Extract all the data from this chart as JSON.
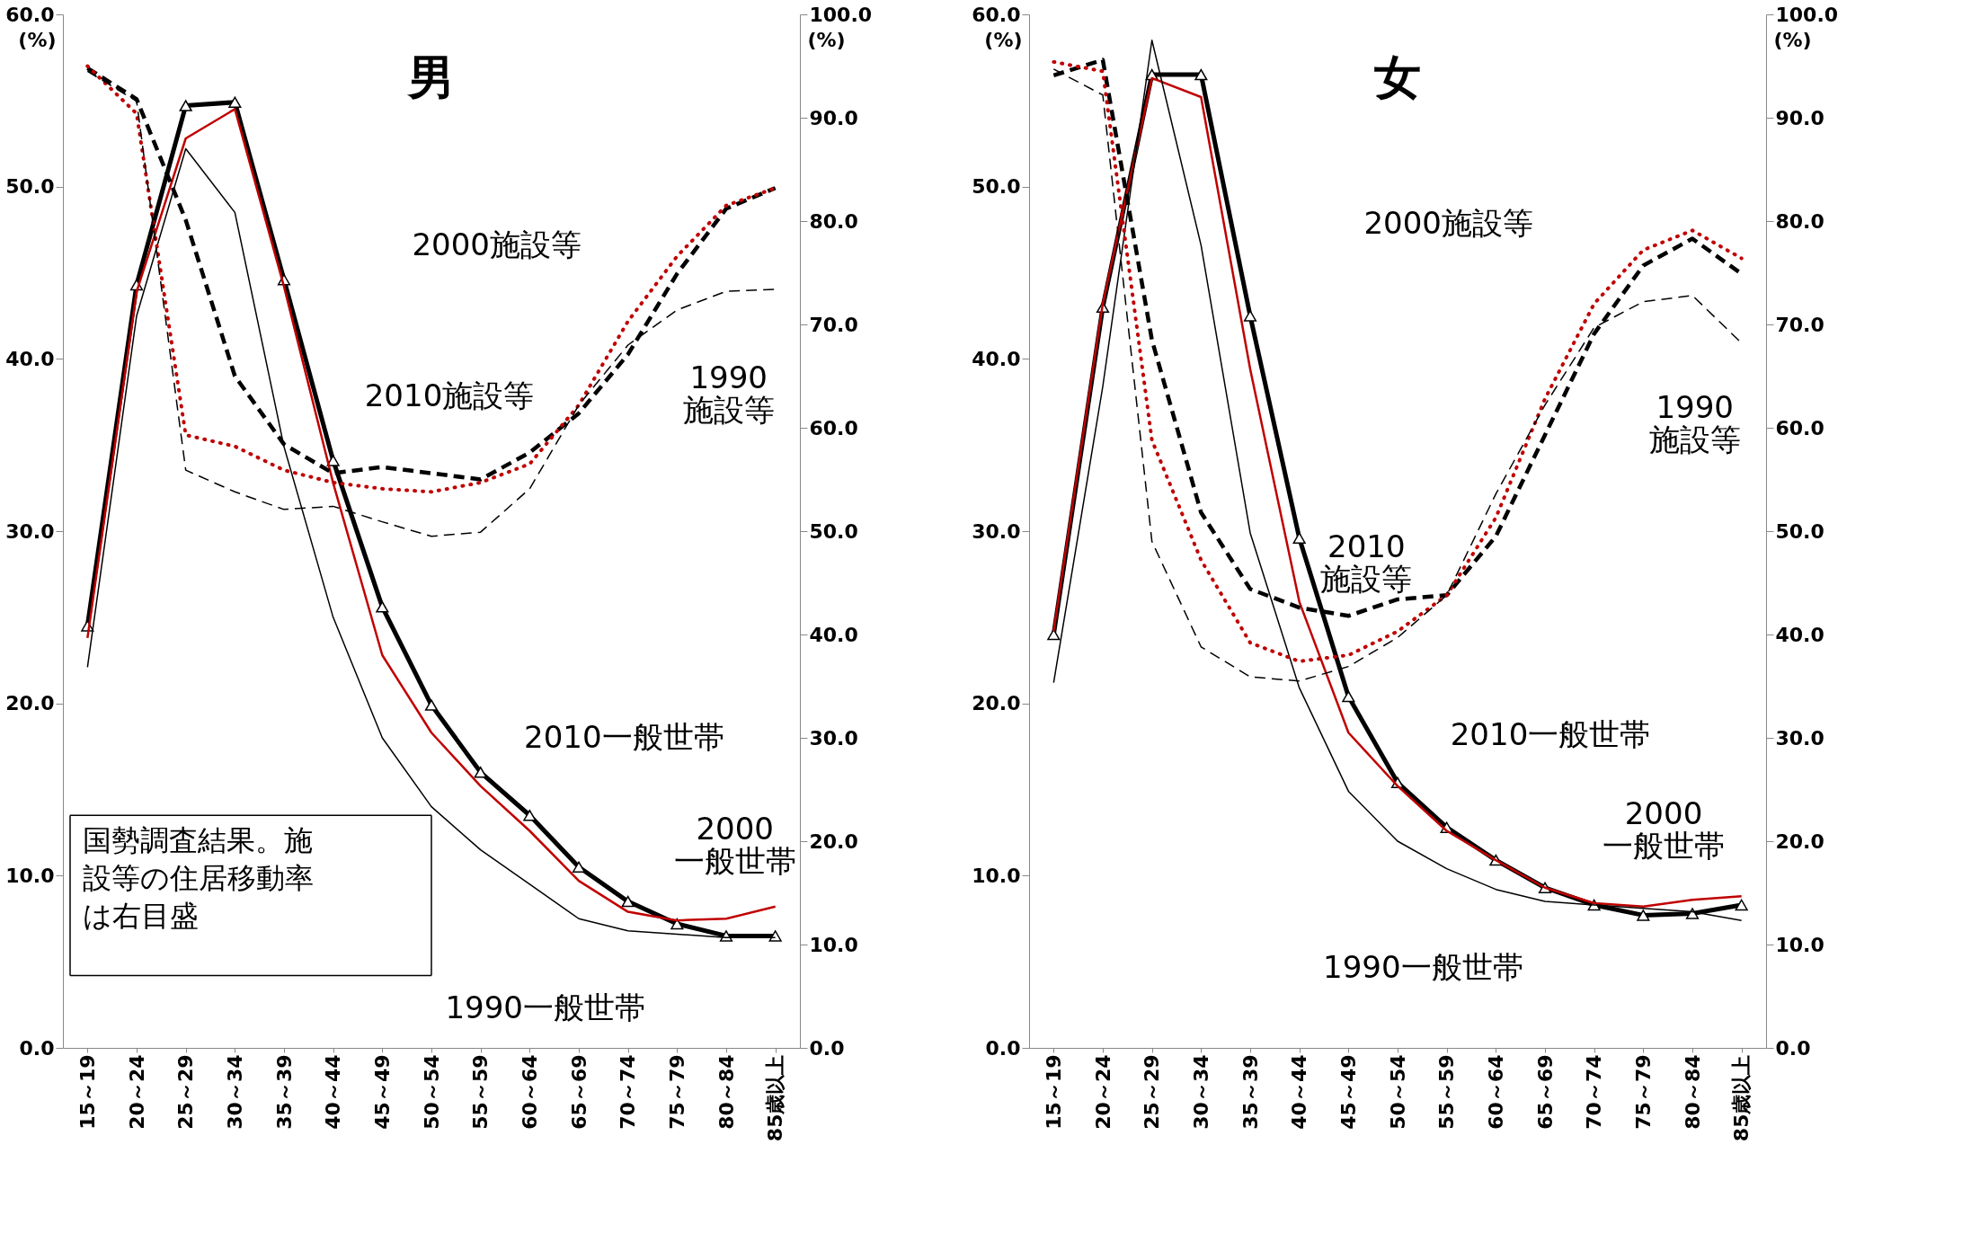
{
  "chart_data": [
    {
      "type": "line",
      "title": "男",
      "ylabel": "(%)",
      "y2label": "(%)",
      "categories": [
        "15～19",
        "20～24",
        "25～29",
        "30～34",
        "35～39",
        "40～44",
        "45～49",
        "50～54",
        "55～59",
        "60～64",
        "65～69",
        "70～74",
        "75～79",
        "80～84",
        "85歳以上"
      ],
      "ylim": [
        0,
        60
      ],
      "yticks": [
        {
          "value": 0,
          "label": "0.0"
        },
        {
          "value": 10,
          "label": "10.0"
        },
        {
          "value": 20,
          "label": "20.0"
        },
        {
          "value": 30,
          "label": "30.0"
        },
        {
          "value": 40,
          "label": "40.0"
        },
        {
          "value": 50,
          "label": "50.0"
        },
        {
          "value": 60,
          "label": "60.0"
        }
      ],
      "y2lim": [
        0,
        100
      ],
      "y2ticks": [
        {
          "value": 0,
          "label": "0.0"
        },
        {
          "value": 10,
          "label": "10.0"
        },
        {
          "value": 20,
          "label": "20.0"
        },
        {
          "value": 30,
          "label": "30.0"
        },
        {
          "value": 40,
          "label": "40.0"
        },
        {
          "value": 50,
          "label": "50.0"
        },
        {
          "value": 60,
          "label": "60.0"
        },
        {
          "value": 70,
          "label": "70.0"
        },
        {
          "value": 80,
          "label": "80.0"
        },
        {
          "value": 90,
          "label": "90.0"
        },
        {
          "value": 100,
          "label": "100.0"
        }
      ],
      "annotations": [
        "国勢調査結果。施設等の住居移動率は右目盛"
      ],
      "series": [
        {
          "name": "2010一般世帯",
          "color": "#000000",
          "axis": "y",
          "marker": "triangle",
          "line_style": "solid",
          "values": [
            24.5,
            44.3,
            54.7,
            54.9,
            44.6,
            34.1,
            25.6,
            19.9,
            16.0,
            13.5,
            10.5,
            8.5,
            7.2,
            6.5,
            6.5
          ]
        },
        {
          "name": "2000一般世帯",
          "color": "#c00000",
          "axis": "y",
          "line_style": "solid",
          "values": [
            23.8,
            43.9,
            52.8,
            54.5,
            44.2,
            32.8,
            22.8,
            18.3,
            15.2,
            12.6,
            9.7,
            7.9,
            7.4,
            7.5,
            8.2
          ]
        },
        {
          "name": "1990一般世帯",
          "color": "#000000",
          "axis": "y",
          "line_style": "solid",
          "values": [
            22.1,
            42.5,
            52.2,
            48.5,
            34.9,
            25.0,
            18.0,
            14.0,
            11.5,
            9.5,
            7.5,
            6.8,
            6.6,
            6.4,
            6.4
          ]
        },
        {
          "name": "2010施設等",
          "color": "#000000",
          "axis": "y2",
          "line_style": "dashed",
          "values": [
            94.8,
            91.8,
            80.1,
            65.0,
            58.4,
            55.6,
            56.2,
            55.6,
            55.0,
            57.6,
            61.4,
            67.1,
            74.9,
            81.2,
            83.2
          ]
        },
        {
          "name": "2000施設等",
          "color": "#c00000",
          "axis": "y2",
          "line_style": "dotted",
          "values": [
            95.0,
            90.4,
            59.3,
            58.2,
            55.9,
            54.7,
            54.1,
            53.8,
            54.7,
            56.5,
            62.2,
            70.3,
            76.6,
            81.5,
            83.2
          ]
        },
        {
          "name": "1990施設等",
          "color": "#000000",
          "axis": "y2",
          "line_style": "dashed",
          "values": [
            94.5,
            91.6,
            55.9,
            53.8,
            52.1,
            52.4,
            50.9,
            49.5,
            49.9,
            54.1,
            62.2,
            68.0,
            71.4,
            73.2,
            73.4
          ]
        }
      ]
    },
    {
      "type": "line",
      "title": "女",
      "ylabel": "(%)",
      "y2label": "(%)",
      "categories": [
        "15～19",
        "20～24",
        "25～29",
        "30～34",
        "35～39",
        "40～44",
        "45～49",
        "50～54",
        "55～59",
        "60～64",
        "65～69",
        "70～74",
        "75～79",
        "80～84",
        "85歳以上"
      ],
      "ylim": [
        0,
        60
      ],
      "yticks": [
        {
          "value": 0,
          "label": "0.0"
        },
        {
          "value": 10,
          "label": "10.0"
        },
        {
          "value": 20,
          "label": "20.0"
        },
        {
          "value": 30,
          "label": "30.0"
        },
        {
          "value": 40,
          "label": "40.0"
        },
        {
          "value": 50,
          "label": "50.0"
        },
        {
          "value": 60,
          "label": "60.0"
        }
      ],
      "y2lim": [
        0,
        100
      ],
      "y2ticks": [
        {
          "value": 0,
          "label": "0.0"
        },
        {
          "value": 10,
          "label": "10.0"
        },
        {
          "value": 20,
          "label": "20.0"
        },
        {
          "value": 30,
          "label": "30.0"
        },
        {
          "value": 40,
          "label": "40.0"
        },
        {
          "value": 50,
          "label": "50.0"
        },
        {
          "value": 60,
          "label": "60.0"
        },
        {
          "value": 70,
          "label": "70.0"
        },
        {
          "value": 80,
          "label": "80.0"
        },
        {
          "value": 90,
          "label": "90.0"
        },
        {
          "value": 100,
          "label": "100.0"
        }
      ],
      "series": [
        {
          "name": "2010一般世帯",
          "color": "#000000",
          "axis": "y",
          "marker": "triangle",
          "line_style": "solid",
          "values": [
            24.0,
            43.0,
            56.5,
            56.5,
            42.5,
            29.6,
            20.4,
            15.4,
            12.8,
            10.9,
            9.3,
            8.3,
            7.7,
            7.8,
            8.3
          ]
        },
        {
          "name": "2000一般世帯",
          "color": "#c00000",
          "axis": "y",
          "line_style": "solid",
          "values": [
            24.2,
            43.2,
            56.3,
            55.2,
            39.4,
            25.9,
            18.3,
            15.2,
            12.6,
            10.9,
            9.3,
            8.4,
            8.2,
            8.6,
            8.8
          ]
        },
        {
          "name": "1990一般世帯",
          "color": "#000000",
          "axis": "y",
          "line_style": "solid",
          "values": [
            21.2,
            38.4,
            58.5,
            46.6,
            29.9,
            20.9,
            14.9,
            12.0,
            10.4,
            9.2,
            8.5,
            8.3,
            8.1,
            7.9,
            7.4
          ]
        },
        {
          "name": "2010施設等",
          "color": "#000000",
          "axis": "y2",
          "line_style": "dashed",
          "values": [
            94.1,
            95.6,
            68.5,
            51.8,
            44.4,
            42.6,
            41.8,
            43.4,
            43.8,
            49.5,
            59.3,
            69.1,
            75.7,
            78.3,
            74.9
          ]
        },
        {
          "name": "2000施設等",
          "color": "#c00000",
          "axis": "y2",
          "line_style": "dotted",
          "values": [
            95.4,
            94.5,
            58.8,
            47.2,
            39.2,
            37.4,
            38.0,
            40.3,
            43.8,
            51.3,
            62.8,
            72.0,
            77.2,
            79.1,
            76.4
          ]
        },
        {
          "name": "1990施設等",
          "color": "#000000",
          "axis": "y2",
          "line_style": "dashed",
          "values": [
            94.7,
            92.2,
            49.0,
            38.8,
            35.9,
            35.5,
            36.9,
            39.7,
            43.8,
            53.6,
            62.2,
            69.7,
            72.2,
            72.8,
            68.2
          ]
        }
      ]
    }
  ]
}
